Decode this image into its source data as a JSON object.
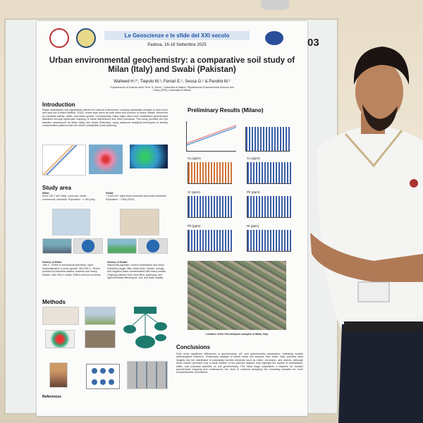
{
  "poster": {
    "conference": "Le Geoscienze e le sfide del XXI secolo",
    "place_date": "Padova, 16-18 Settembre 2025",
    "board_number": "03",
    "title": "Urban environmental geochemistry: a comparative soil study of Milan (Italy) and Swabi (Pakistan)",
    "authors": "Waheed H.¹*, Tiepolo M.¹, Ferrari E.¹, Sessa G.¹ & Parolini M.²",
    "affiliations": "¹Dipartimento di Scienze della Terra \"A. Desio\", Università di Milano; ²Dipartimento Environmental Science and Policy (ESP), Università di Milano",
    "introduction": {
      "heading": "Introduction",
      "text": "Rapid urbanization has significantly altered the natural environment, causing substantial changes in land cover and land use (United Nations, 2018). Urban soils serve as both sinks and sources of heavy metals, influenced by industrial activity, traffic, and urban growth. Consequently, many major cities have established geochemical baselines through systematic mapping of metal distributions and other pollutants. This study provides the first baseline assessment for Milan (Italy) and Swabi (Pakistan), using advanced analytical techniques to identify contamination patterns that can inform sustainable urban planning."
    },
    "study_area": {
      "heading": "Study area",
      "milan": {
        "label": "Milan:",
        "text": "Area: 181.7 km² (city). Land use: urban, commercial, industrial. Population: ~1.4M (city)."
      },
      "swabi": {
        "label": "Swabi:",
        "text": "~1,543 km². Agriculture dominant and small industries. Population: ~1.6M (2023)."
      },
      "history_milan": {
        "label": "History of Milan:",
        "text": "19th c.: Textile & mechanical industries, rapid industrialization & urban growth. Mid 20th c.: Rivers polluted by industrial wastes, solvents and heavy metals. Late 20th c.-today: Shift to service economy."
      },
      "history_swabi": {
        "label": "History of Swabi:",
        "text": "Historically agrarian; recent urbanization and small industries (sugar mills, brick kilns). Canals, springs, and irrigation water contaminated with heavy metals. Ongoing pollution from brick kilns, quarrying, and agrochemicals affecting air, soil, and water quality."
      }
    },
    "methods": {
      "heading": "Methods"
    },
    "results": {
      "heading": "Preliminary Results (Milano)",
      "charts": [
        "Cu (ppm)",
        "Co (ppm)",
        "Cr (ppm)",
        "Pb (ppm)",
        "Pb (ppm)",
        "Ni (ppm)"
      ],
      "map_caption": "Location of the first analyzed samples in Milan, Italy"
    },
    "conclusions": {
      "heading": "Conclusions",
      "text": "Soils show significant differences in geochemistry, pH, and granulometric parameters, indicating notable anthropogenic influence. Preliminary analysis of select urban soil samples from Milan, Italy, provides early insights into the distribution of potentially harmful elements such as nickel, chromium, and arsenic. Although these results represent only a small fraction of the planned dataset, they highlight the impact of urbanization, traffic, and industrial activities on soil geochemistry. This initial stage establishes a baseline for broader geochemical mapping and underscores the need to continue analyzing the remaining samples for more comprehensive conclusions."
    },
    "references": {
      "heading": "References"
    }
  }
}
